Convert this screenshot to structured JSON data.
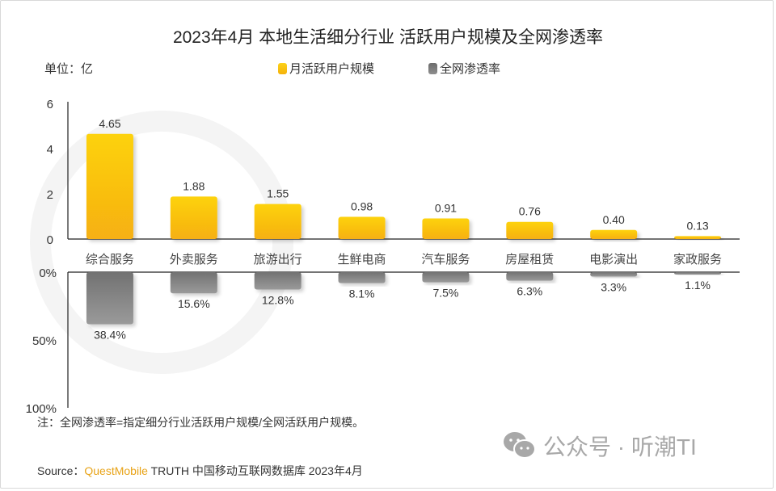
{
  "chart_data": {
    "type": "bar",
    "title": "2023年4月 本地生活细分行业 活跃用户规模及全网渗透率",
    "unit_label": "单位：亿",
    "categories": [
      "综合服务",
      "外卖服务",
      "旅游出行",
      "生鲜电商",
      "汽车服务",
      "房屋租赁",
      "电影演出",
      "家政服务"
    ],
    "series": [
      {
        "name": "月活跃用户规模",
        "color": "#fbbf10",
        "values": [
          4.65,
          1.88,
          1.55,
          0.98,
          0.91,
          0.76,
          0.4,
          0.13
        ],
        "labels": [
          "4.65",
          "1.88",
          "1.55",
          "0.98",
          "0.91",
          "0.76",
          "0.40",
          "0.13"
        ],
        "axis": {
          "ylim": [
            0,
            6
          ],
          "ticks": [
            "0",
            "2",
            "4",
            "6"
          ],
          "tick_values": [
            0,
            2,
            4,
            6
          ]
        }
      },
      {
        "name": "全网渗透率",
        "color": "#808080",
        "values": [
          38.4,
          15.6,
          12.8,
          8.1,
          7.5,
          6.3,
          3.3,
          1.1
        ],
        "labels": [
          "38.4%",
          "15.6%",
          "12.8%",
          "8.1%",
          "7.5%",
          "6.3%",
          "3.3%",
          "1.1%"
        ],
        "axis": {
          "ylim": [
            0,
            100
          ],
          "ticks": [
            "0%",
            "50%",
            "100%"
          ],
          "tick_values": [
            0,
            50,
            100
          ],
          "inverted": true
        }
      }
    ],
    "legend_position": "top-center",
    "grid": false
  },
  "footer": {
    "note": "注：全网渗透率=指定细分行业活跃用户规模/全网活跃用户规模。",
    "source_prefix": "Source：",
    "source_brand": "QuestMobile",
    "source_rest": " TRUTH 中国移动互联网数据库 2023年4月"
  },
  "watermark": {
    "text": "公众号 · 听潮TI",
    "icon": "wechat-icon"
  }
}
